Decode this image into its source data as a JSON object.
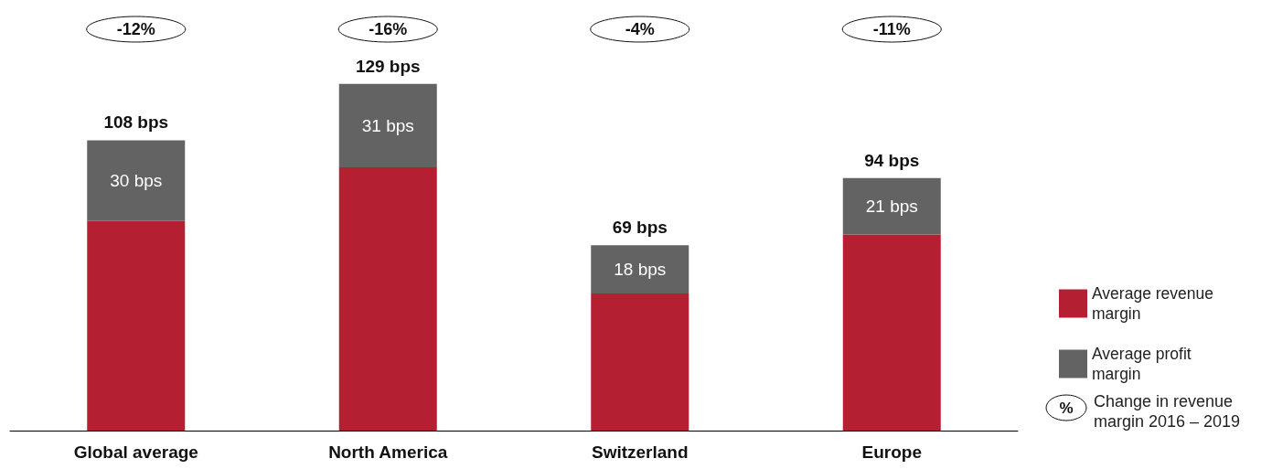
{
  "chart_data": {
    "type": "bar",
    "stacked": true,
    "categories": [
      "Global average",
      "North America",
      "Switzerland",
      "Europe"
    ],
    "series": [
      {
        "name": "Average revenue margin",
        "color": "#b41f32",
        "values": [
          78,
          98,
          51,
          73
        ]
      },
      {
        "name": "Average profit margin",
        "color": "#636363",
        "values": [
          30,
          31,
          18,
          21
        ],
        "value_labels": [
          "30 bps",
          "31 bps",
          "18 bps",
          "21 bps"
        ]
      }
    ],
    "totals": [
      "108 bps",
      "129 bps",
      "69 bps",
      "94 bps"
    ],
    "annotations": [
      "-12%",
      "-16%",
      "-4%",
      "-11%",
      "%",
      "Change in revenue margin 2016 – 2019"
    ],
    "legend": "right"
  }
}
